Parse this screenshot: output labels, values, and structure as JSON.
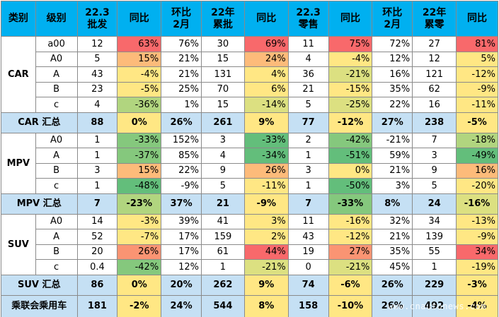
{
  "header": {
    "type": "类别",
    "level": "级别",
    "wholesale_line1": "22.3",
    "wholesale_line2": "批发",
    "yoy1": "同比",
    "mom1_line1": "环比",
    "mom1_line2": "2月",
    "cum_wholesale_line1": "22年",
    "cum_wholesale_line2": "累批",
    "yoy2": "同比",
    "retail_line1": "22.3",
    "retail_line2": "零售",
    "yoy3": "同比",
    "mom2_line1": "环比",
    "mom2_line2": "2月",
    "cum_retail_line1": "22年",
    "cum_retail_line2": "累零",
    "yoy4": "同比"
  },
  "groups": {
    "car": {
      "label": "CAR",
      "rows": [
        {
          "level": "a00",
          "v": [
            "12",
            "63%",
            "76%",
            "30",
            "69%",
            "11",
            "75%",
            "72%",
            "27",
            "81%"
          ]
        },
        {
          "level": "A0",
          "v": [
            "5",
            "15%",
            "21%",
            "15",
            "24%",
            "4",
            "-4%",
            "12%",
            "12",
            "5%"
          ]
        },
        {
          "level": "A",
          "v": [
            "43",
            "-4%",
            "21%",
            "131",
            "4%",
            "36",
            "-21%",
            "16%",
            "121",
            "-12%"
          ]
        },
        {
          "level": "B",
          "v": [
            "23",
            "-5%",
            "25%",
            "70",
            "6%",
            "21",
            "-15%",
            "35%",
            "62",
            "-9%"
          ]
        },
        {
          "level": "c",
          "v": [
            "4",
            "-36%",
            "1%",
            "15",
            "-14%",
            "5",
            "-25%",
            "22%",
            "16",
            "-11%"
          ]
        }
      ],
      "summary": {
        "label": "CAR 汇总",
        "v": [
          "88",
          "0%",
          "26%",
          "261",
          "9%",
          "77",
          "-12%",
          "27%",
          "238",
          "-5%"
        ]
      }
    },
    "mpv": {
      "label": "MPV",
      "rows": [
        {
          "level": "A0",
          "v": [
            "1",
            "-33%",
            "152%",
            "3",
            "-33%",
            "2",
            "-42%",
            "-21%",
            "7",
            "-18%"
          ]
        },
        {
          "level": "A",
          "v": [
            "1",
            "-37%",
            "85%",
            "4",
            "-34%",
            "1",
            "-51%",
            "59%",
            "3",
            "-49%"
          ]
        },
        {
          "level": "B",
          "v": [
            "3",
            "15%",
            "22%",
            "9",
            "26%",
            "3",
            "0%",
            "21%",
            "9",
            "16%"
          ]
        },
        {
          "level": "c",
          "v": [
            "1",
            "-48%",
            "-9%",
            "5",
            "-11%",
            "1",
            "-50%",
            "3%",
            "5",
            "-20%"
          ]
        }
      ],
      "summary": {
        "label": "MPV 汇总",
        "v": [
          "7",
          "-23%",
          "37%",
          "21",
          "-9%",
          "7",
          "-33%",
          "8%",
          "24",
          "-16%"
        ]
      }
    },
    "suv": {
      "label": "SUV",
      "rows": [
        {
          "level": "A0",
          "v": [
            "14",
            "-3%",
            "39%",
            "41",
            "3%",
            "11",
            "-16%",
            "32%",
            "34",
            "-13%"
          ]
        },
        {
          "level": "A",
          "v": [
            "52",
            "-7%",
            "17%",
            "159",
            "2%",
            "43",
            "-12%",
            "21%",
            "139",
            "-9%"
          ]
        },
        {
          "level": "B",
          "v": [
            "20",
            "26%",
            "17%",
            "61",
            "44%",
            "19",
            "27%",
            "35%",
            "55",
            "34%"
          ]
        },
        {
          "level": "c",
          "v": [
            "0.4",
            "-42%",
            "12%",
            "1",
            "-21%",
            "0",
            "-21%",
            "45%",
            "1",
            "-19%"
          ]
        }
      ],
      "summary": {
        "label": "SUV 汇总",
        "v": [
          "86",
          "0%",
          "20%",
          "262",
          "9%",
          "74",
          "-6%",
          "26%",
          "229",
          "-3%"
        ]
      }
    }
  },
  "total": {
    "label": "乘联会乘用车",
    "v": [
      "181",
      "-2%",
      "24%",
      "544",
      "8%",
      "158",
      "-10%",
      "26%",
      "492",
      "-4%"
    ]
  },
  "watermark": "www.cnautonews.com",
  "colors": {
    "header": "#00b0f0",
    "summary_row": "#c5e0f4",
    "red_text": "#e01010",
    "heat_red": "#f8696b",
    "heat_yellow": "#ffeb84",
    "heat_green": "#63be7b"
  }
}
